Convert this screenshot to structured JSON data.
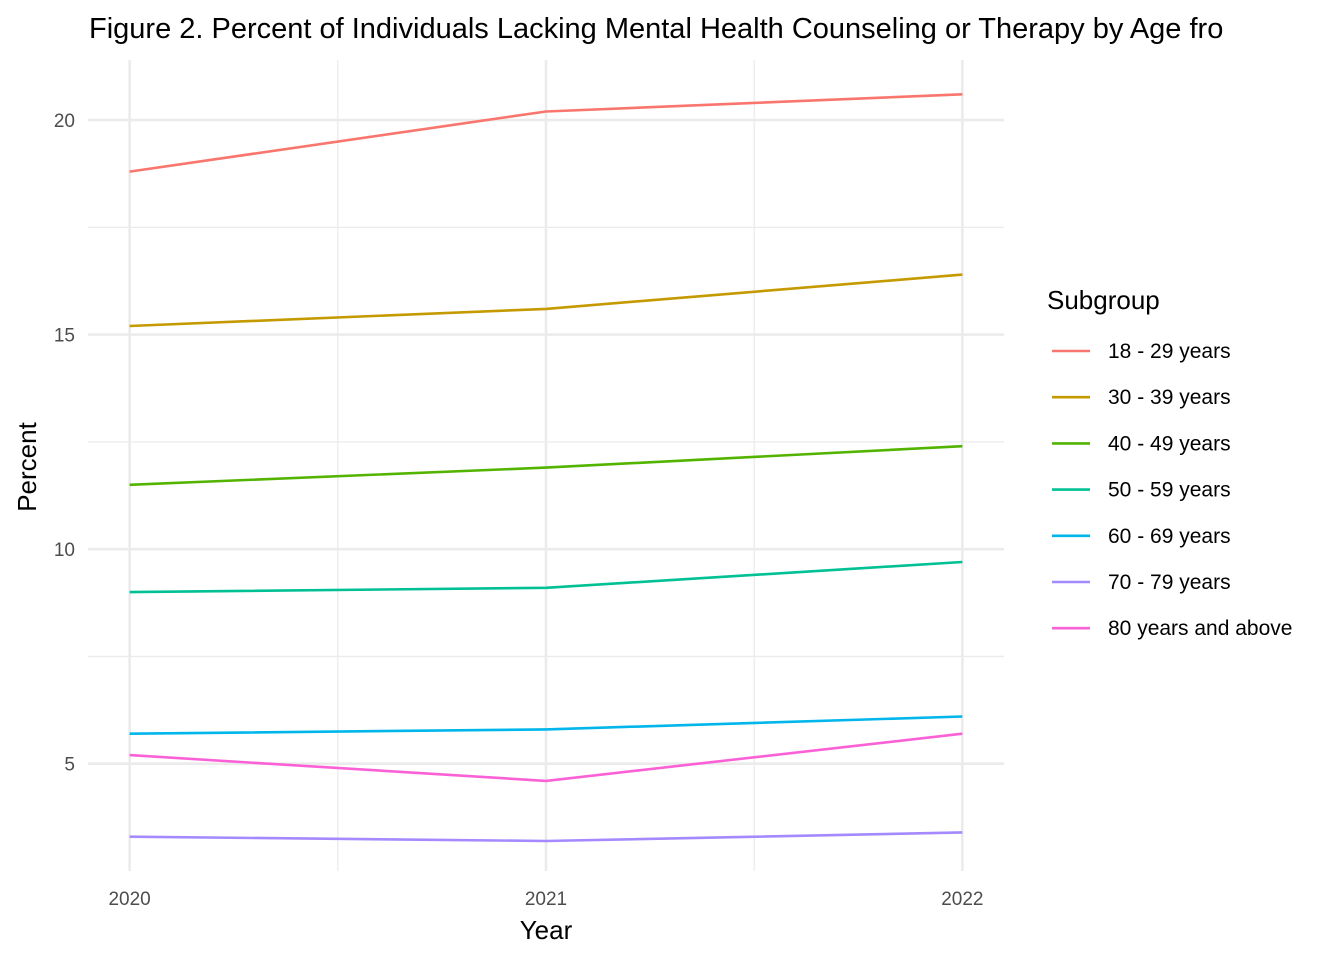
{
  "chart_data": {
    "type": "line",
    "title": "Figure 2. Percent of Individuals Lacking Mental Health Counseling or Therapy by Age fro",
    "xlabel": "Year",
    "ylabel": "Percent",
    "x": [
      2020,
      2021,
      2022
    ],
    "x_tick_labels": [
      "2020",
      "2021",
      "2022"
    ],
    "y_ticks": [
      5,
      10,
      15,
      20
    ],
    "y_tick_labels": [
      "5",
      "10",
      "15",
      "20"
    ],
    "xlim": [
      2019.9,
      2022.1
    ],
    "ylim": [
      2.5,
      21.4
    ],
    "grid": true,
    "legend": {
      "title": "Subgroup",
      "placement": "right"
    },
    "series": [
      {
        "name": "18 - 29 years",
        "color": "#F8766D",
        "values": [
          18.8,
          20.2,
          20.6
        ]
      },
      {
        "name": "30 - 39 years",
        "color": "#C49A00",
        "values": [
          15.2,
          15.6,
          16.4
        ]
      },
      {
        "name": "40 - 49 years",
        "color": "#53B400",
        "values": [
          11.5,
          11.9,
          12.4
        ]
      },
      {
        "name": "50 - 59 years",
        "color": "#00C094",
        "values": [
          9.0,
          9.1,
          9.7
        ]
      },
      {
        "name": "60 - 69 years",
        "color": "#00B6EB",
        "values": [
          5.7,
          5.8,
          6.1
        ]
      },
      {
        "name": "70 - 79 years",
        "color": "#A58AFF",
        "values": [
          3.3,
          3.2,
          3.4
        ]
      },
      {
        "name": "80 years and above",
        "color": "#FB61D7",
        "values": [
          5.2,
          4.6,
          5.7
        ]
      }
    ]
  }
}
